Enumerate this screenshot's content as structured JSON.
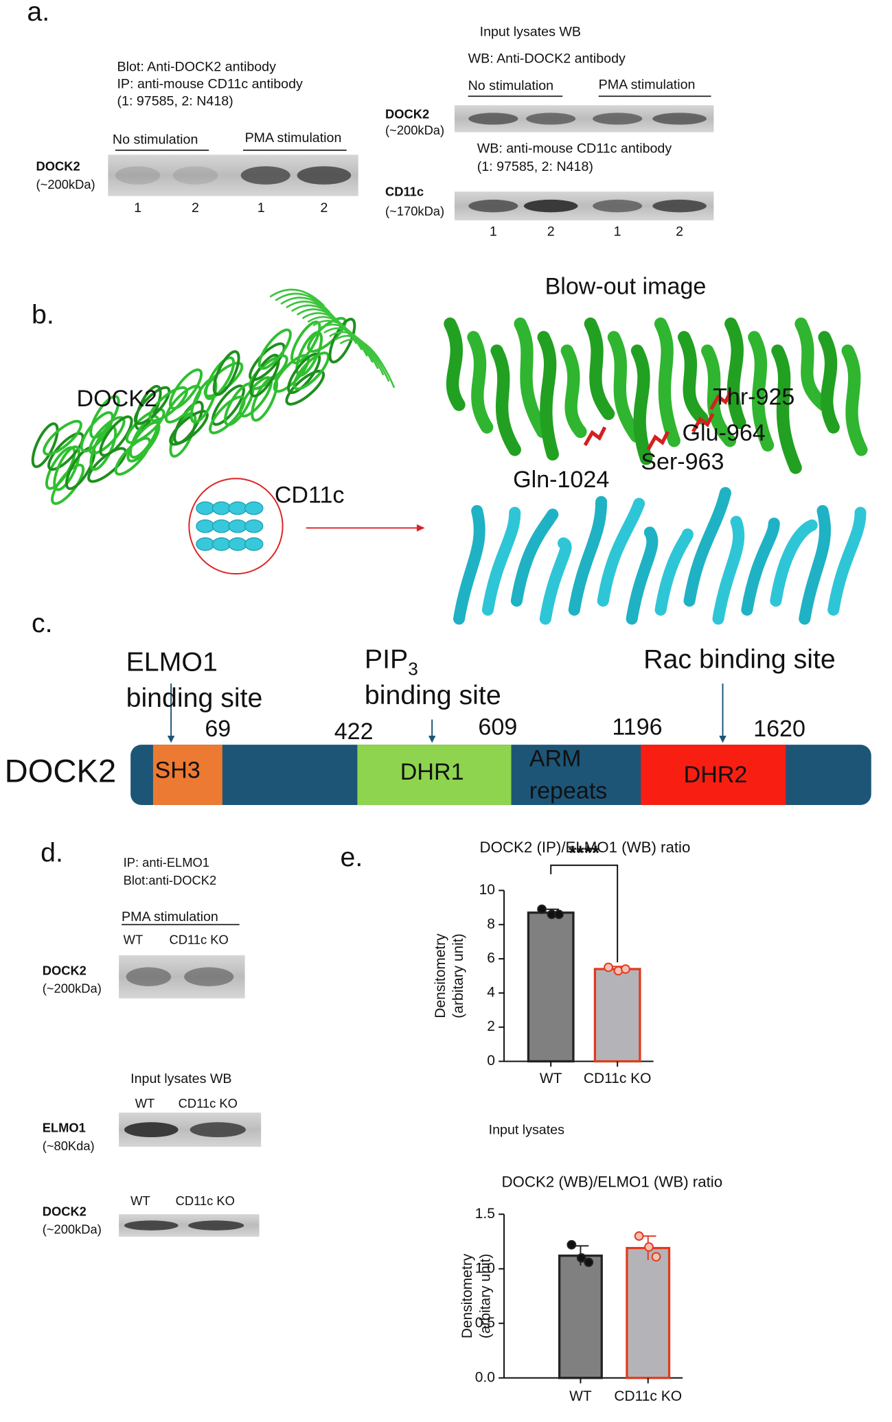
{
  "panel_a": {
    "label": "a.",
    "ip": {
      "lines": [
        "Blot: Anti-DOCK2 antibody",
        "IP: anti-mouse CD11c antibody",
        "(1: 97585, 2: N418)"
      ],
      "groups": [
        "No stimulation",
        "PMA stimulation"
      ],
      "band": "DOCK2",
      "size": "(~200kDa)",
      "lanes": [
        "1",
        "2",
        "1",
        "2"
      ]
    },
    "input": {
      "title": "Input lysates WB",
      "wb1": "WB: Anti-DOCK2 antibody",
      "groups": [
        "No stimulation",
        "PMA stimulation"
      ],
      "band1": "DOCK2",
      "size1": "(~200kDa)",
      "wb2": [
        "WB: anti-mouse CD11c antibody",
        "(1: 97585, 2: N418)"
      ],
      "band2": "CD11c",
      "size2": "(~170kDa)",
      "lanes": [
        "1",
        "2",
        "1",
        "2"
      ]
    }
  },
  "panel_b": {
    "label": "b.",
    "blowout_title": "Blow-out image",
    "dock2": "DOCK2",
    "cd11c": "CD11c",
    "residues": [
      "Thr-925",
      "Glu-964",
      "Ser-963",
      "Gln-1024"
    ]
  },
  "panel_c": {
    "label": "c.",
    "elmo1_site": [
      "ELMO1",
      "binding site"
    ],
    "pip3_site": {
      "main": "PIP",
      "sub": "3",
      "second": "binding site"
    },
    "rac_site": "Rac binding site",
    "protein": "DOCK2",
    "domains": [
      "SH3",
      "DHR1",
      "ARM",
      "repeats",
      "DHR2"
    ],
    "positions": [
      "69",
      "422",
      "609",
      "1196",
      "1620"
    ]
  },
  "panel_d": {
    "label": "d.",
    "ip_lines": [
      "IP: anti-ELMO1",
      "Blot:anti-DOCK2"
    ],
    "stim": "PMA stimulation",
    "lanes1": [
      "WT",
      "CD11c KO"
    ],
    "band1": "DOCK2",
    "size1": "(~200kDa)",
    "input_title": "Input lysates WB",
    "lanes2": [
      "WT",
      "CD11c KO"
    ],
    "band2": "ELMO1",
    "size2": "(~80Kda)",
    "lanes3": [
      "WT",
      "CD11c KO"
    ],
    "band3": "DOCK2",
    "size3": "(~200kDa)"
  },
  "panel_e": {
    "label": "e.",
    "input_title": "Input lysates"
  },
  "chart_data": [
    {
      "type": "bar",
      "title": "DOCK2 (IP)/ELMO1 (WB) ratio",
      "ylabel": [
        "Densitometry",
        "(arbitary unit)"
      ],
      "categories": [
        "WT",
        "CD11c KO"
      ],
      "values": [
        8.7,
        5.4
      ],
      "errors": [
        0.2,
        0.15
      ],
      "points": [
        [
          8.9,
          8.6,
          8.6
        ],
        [
          5.5,
          5.3,
          5.4
        ]
      ],
      "bar_colors": [
        "#808080",
        "#b4b4b8"
      ],
      "edge_colors": [
        "#222222",
        "#e03a1e"
      ],
      "ylim": [
        0,
        10
      ],
      "yticks": [
        0,
        2,
        4,
        6,
        8,
        10
      ],
      "annotation": "****"
    },
    {
      "type": "bar",
      "title": "DOCK2 (WB)/ELMO1 (WB) ratio",
      "ylabel": [
        "Densitometry",
        "(arbitary unit)"
      ],
      "categories": [
        "WT",
        "CD11c KO"
      ],
      "values": [
        1.12,
        1.19
      ],
      "errors": [
        0.09,
        0.11
      ],
      "points": [
        [
          1.22,
          1.1,
          1.06
        ],
        [
          1.3,
          1.2,
          1.11
        ]
      ],
      "bar_colors": [
        "#808080",
        "#b4b4b8"
      ],
      "edge_colors": [
        "#222222",
        "#e03a1e"
      ],
      "ylim": [
        0,
        1.5
      ],
      "yticks": [
        {
          "value": 0,
          "label": "0.0"
        },
        0.5,
        {
          "value": 1,
          "label": "1.0"
        },
        1.5
      ]
    }
  ]
}
